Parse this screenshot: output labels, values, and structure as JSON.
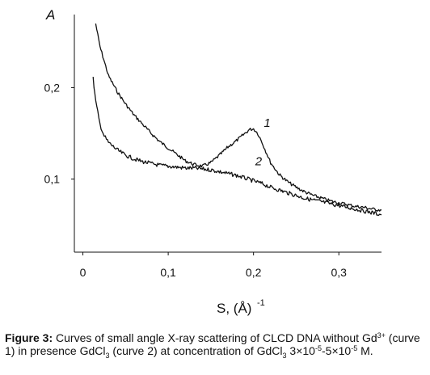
{
  "chart_data": {
    "type": "line",
    "ylabel": "A",
    "xlabel_main": "S, (Å)",
    "xlabel_exp": "-1",
    "xlim": [
      -0.01,
      0.35
    ],
    "ylim": [
      0.02,
      0.28
    ],
    "x_ticks": [
      {
        "value": 0,
        "label": "0"
      },
      {
        "value": 0.1,
        "label": "0,1"
      },
      {
        "value": 0.2,
        "label": "0,2"
      },
      {
        "value": 0.3,
        "label": "0,3"
      }
    ],
    "y_ticks": [
      {
        "value": 0.1,
        "label": "0,1"
      },
      {
        "value": 0.2,
        "label": "0,2"
      }
    ],
    "series": [
      {
        "name": "1",
        "label_pos": [
          0.212,
          0.157
        ],
        "x": [
          0.015,
          0.02,
          0.03,
          0.04,
          0.05,
          0.06,
          0.07,
          0.08,
          0.09,
          0.1,
          0.11,
          0.12,
          0.13,
          0.14,
          0.15,
          0.16,
          0.17,
          0.18,
          0.19,
          0.195,
          0.2,
          0.205,
          0.21,
          0.22,
          0.23,
          0.24,
          0.25,
          0.26,
          0.27,
          0.28,
          0.29,
          0.3,
          0.31,
          0.32,
          0.33,
          0.34,
          0.35
        ],
        "y": [
          0.27,
          0.245,
          0.213,
          0.196,
          0.182,
          0.17,
          0.16,
          0.15,
          0.141,
          0.134,
          0.127,
          0.12,
          0.116,
          0.114,
          0.118,
          0.126,
          0.135,
          0.142,
          0.15,
          0.154,
          0.155,
          0.15,
          0.14,
          0.118,
          0.105,
          0.097,
          0.091,
          0.086,
          0.082,
          0.079,
          0.076,
          0.074,
          0.072,
          0.07,
          0.069,
          0.067,
          0.066
        ]
      },
      {
        "name": "2",
        "label_pos": [
          0.202,
          0.115
        ],
        "x": [
          0.012,
          0.015,
          0.02,
          0.025,
          0.03,
          0.04,
          0.05,
          0.06,
          0.07,
          0.08,
          0.09,
          0.1,
          0.11,
          0.12,
          0.13,
          0.14,
          0.15,
          0.16,
          0.17,
          0.18,
          0.19,
          0.2,
          0.21,
          0.22,
          0.23,
          0.24,
          0.25,
          0.26,
          0.27,
          0.28,
          0.29,
          0.3,
          0.31,
          0.32,
          0.33,
          0.34,
          0.35
        ],
        "y": [
          0.21,
          0.185,
          0.16,
          0.147,
          0.14,
          0.132,
          0.126,
          0.122,
          0.119,
          0.117,
          0.115,
          0.114,
          0.113,
          0.112,
          0.112,
          0.111,
          0.11,
          0.108,
          0.106,
          0.104,
          0.101,
          0.098,
          0.095,
          0.091,
          0.088,
          0.085,
          0.082,
          0.079,
          0.077,
          0.075,
          0.073,
          0.071,
          0.069,
          0.067,
          0.065,
          0.063,
          0.061
        ]
      }
    ]
  },
  "caption": {
    "label": "Figure 3:",
    "p1": " Curves of small angle X-ray scattering of CLCD DNA without Gd",
    "sup1": "3+",
    "p2": " (curve 1) in presence GdCl",
    "sub1": "3",
    "p3": " (curve 2) at concentration of GdCl",
    "sub2": "3",
    "p4": " 3×10",
    "sup2": "-5",
    "p5": "-5×10",
    "sup3": "-5",
    "p6": " M."
  }
}
